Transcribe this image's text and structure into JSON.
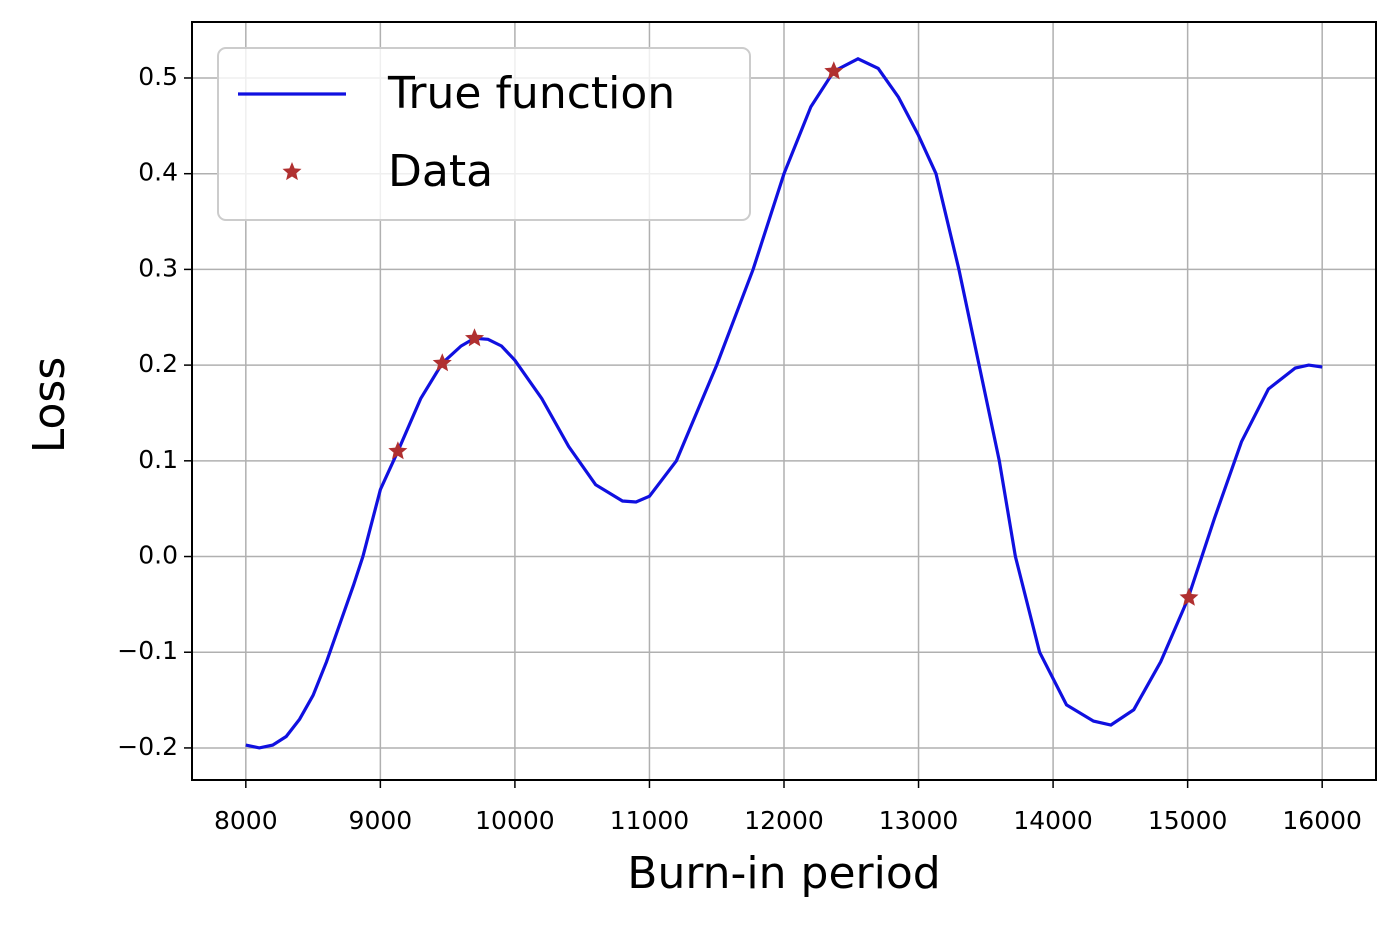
{
  "chart_data": {
    "type": "line",
    "xlabel": "Burn-in period",
    "ylabel": "Loss",
    "xlim": [
      7600,
      16400
    ],
    "ylim": [
      -0.2335,
      0.5585
    ],
    "xticks": [
      8000,
      9000,
      10000,
      11000,
      12000,
      13000,
      14000,
      15000,
      16000
    ],
    "yticks": [
      {
        "value": -0.2,
        "label": "−0.2"
      },
      {
        "value": -0.1,
        "label": "−0.1"
      },
      {
        "value": 0,
        "label": "0.0"
      },
      0.1,
      0.2,
      0.3,
      0.4,
      0.5
    ],
    "grid": true,
    "legend": "upper left",
    "series": [
      {
        "name": "True function",
        "color": "#1010e0",
        "style": "line",
        "x": [
          8000,
          8100,
          8200,
          8300,
          8400,
          8500,
          8600,
          8700,
          8800,
          8870,
          9000,
          9130,
          9300,
          9460,
          9600,
          9700,
          9800,
          9900,
          10000,
          10200,
          10400,
          10600,
          10800,
          10900,
          11000,
          11200,
          11500,
          11770,
          12000,
          12200,
          12370,
          12550,
          12700,
          12850,
          13000,
          13130,
          13300,
          13450,
          13600,
          13720,
          13900,
          14100,
          14300,
          14430,
          14600,
          14800,
          15000,
          15200,
          15400,
          15600,
          15800,
          15900,
          16000
        ],
        "values": [
          -0.197,
          -0.2,
          -0.197,
          -0.188,
          -0.17,
          -0.145,
          -0.11,
          -0.07,
          -0.03,
          0,
          0.07,
          0.11,
          0.165,
          0.202,
          0.22,
          0.228,
          0.227,
          0.22,
          0.205,
          0.165,
          0.115,
          0.075,
          0.058,
          0.057,
          0.063,
          0.1,
          0.2,
          0.3,
          0.4,
          0.47,
          0.507,
          0.52,
          0.51,
          0.48,
          0.44,
          0.4,
          0.3,
          0.2,
          0.1,
          0,
          -0.1,
          -0.155,
          -0.172,
          -0.176,
          -0.16,
          -0.11,
          -0.045,
          0.04,
          0.12,
          0.175,
          0.197,
          0.2,
          0.198
        ]
      },
      {
        "name": "Data",
        "color": "#b03030",
        "style": "star",
        "x": [
          9130,
          9460,
          9700,
          12370,
          15010
        ],
        "values": [
          0.11,
          0.202,
          0.228,
          0.507,
          -0.043
        ]
      }
    ]
  }
}
